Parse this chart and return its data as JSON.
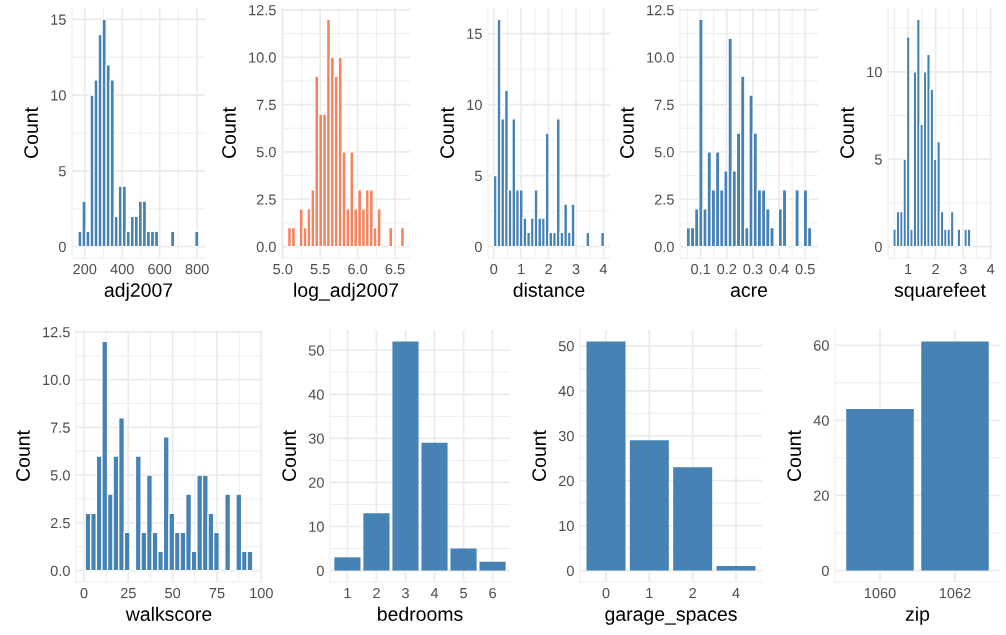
{
  "chart_data": [
    {
      "type": "histogram",
      "xlabel": "adj2007",
      "ylabel": "Count",
      "color": "#4682b4",
      "grid": true,
      "bins": [
        164,
        185.5,
        207,
        228.5,
        250,
        271.5,
        293,
        314.5,
        336,
        357.5,
        379,
        400.5,
        422,
        443.5,
        465,
        486.5,
        508,
        529.5,
        551,
        572.5,
        594,
        615.5,
        637,
        658.5,
        680,
        701.5,
        723,
        744.5,
        766,
        787.5,
        809
      ],
      "values": [
        1,
        3,
        1,
        10,
        11,
        14,
        15,
        12,
        11,
        2,
        4,
        4,
        1,
        2,
        2,
        3,
        3,
        1,
        1,
        1,
        0,
        0,
        0,
        1,
        0,
        0,
        0,
        0,
        0,
        1
      ],
      "xlim": [
        132,
        842
      ],
      "xticks": [
        200,
        400,
        600,
        800
      ],
      "ylim": [
        -0.75,
        15.75
      ],
      "yticks": [
        0,
        5,
        10,
        15
      ]
    },
    {
      "type": "histogram",
      "xlabel": "log_adj2007",
      "ylabel": "Count",
      "color": "#f4845f",
      "grid": true,
      "bins": [
        5.065,
        5.117,
        5.169,
        5.221,
        5.273,
        5.325,
        5.377,
        5.429,
        5.481,
        5.533,
        5.585,
        5.637,
        5.689,
        5.741,
        5.793,
        5.845,
        5.897,
        5.949,
        6.001,
        6.053,
        6.105,
        6.157,
        6.209,
        6.261,
        6.313,
        6.365,
        6.417,
        6.469,
        6.521,
        6.573,
        6.625
      ],
      "values": [
        1,
        1,
        0,
        2,
        1,
        2,
        3,
        9,
        7,
        7,
        12,
        10,
        9,
        10,
        5,
        2,
        5,
        2,
        3,
        2,
        3,
        3,
        1,
        2,
        0,
        0,
        1,
        0,
        0,
        1
      ],
      "xlim": [
        4.99,
        6.7
      ],
      "xticks": [
        {
          "value": 5,
          "label": "5.0"
        },
        {
          "value": 5.5,
          "label": "5.5"
        },
        {
          "value": 6,
          "label": "6.0"
        },
        {
          "value": 6.5,
          "label": "6.5"
        }
      ],
      "ylim": [
        -0.6,
        12.6
      ],
      "yticks": [
        {
          "value": 0,
          "label": "0.0"
        },
        {
          "value": 2.5,
          "label": "2.5"
        },
        {
          "value": 5,
          "label": "5.0"
        },
        {
          "value": 7.5,
          "label": "7.5"
        },
        {
          "value": 10,
          "label": "10.0"
        },
        {
          "value": 12.5,
          "label": "12.5"
        }
      ]
    },
    {
      "type": "histogram",
      "xlabel": "distance",
      "ylabel": "Count",
      "color": "#4682b4",
      "grid": true,
      "bins": [
        -0.01,
        0.125,
        0.26,
        0.395,
        0.53,
        0.665,
        0.8,
        0.935,
        1.07,
        1.205,
        1.34,
        1.475,
        1.61,
        1.745,
        1.88,
        2.015,
        2.15,
        2.285,
        2.42,
        2.555,
        2.69,
        2.825,
        2.96,
        3.095,
        3.23,
        3.365,
        3.5,
        3.635,
        3.77,
        3.905,
        4.04
      ],
      "values": [
        5,
        16,
        9,
        11,
        4,
        9,
        4,
        4,
        2,
        1,
        2,
        4,
        2,
        2,
        8,
        1,
        1,
        9,
        1,
        3,
        1,
        3,
        0,
        0,
        0,
        1,
        0,
        0,
        0,
        1
      ],
      "xlim": [
        -0.21,
        4.24
      ],
      "xticks": [
        0,
        1,
        2,
        3,
        4
      ],
      "ylim": [
        -0.8,
        16.8
      ],
      "yticks": [
        0,
        5,
        10,
        15
      ]
    },
    {
      "type": "histogram",
      "xlabel": "acre",
      "ylabel": "Count",
      "color": "#4682b4",
      "grid": true,
      "bins": [
        0.045,
        0.061,
        0.077,
        0.093,
        0.109,
        0.125,
        0.141,
        0.157,
        0.173,
        0.189,
        0.205,
        0.221,
        0.237,
        0.253,
        0.269,
        0.285,
        0.301,
        0.317,
        0.333,
        0.349,
        0.365,
        0.381,
        0.397,
        0.413,
        0.429,
        0.445,
        0.461,
        0.477,
        0.493,
        0.509,
        0.525
      ],
      "values": [
        1,
        1,
        2,
        12,
        2,
        5,
        3,
        5,
        3,
        4,
        11,
        4,
        6,
        9,
        1,
        8,
        6,
        3,
        3,
        2,
        1,
        0,
        2,
        3,
        0,
        0,
        3,
        0,
        3,
        1
      ],
      "xlim": [
        0.021,
        0.549
      ],
      "xticks": [
        0.1,
        0.2,
        0.3,
        0.4,
        0.5
      ],
      "ylim": [
        -0.6,
        12.6
      ],
      "yticks": [
        {
          "value": 0,
          "label": "0.0"
        },
        {
          "value": 2.5,
          "label": "2.5"
        },
        {
          "value": 5,
          "label": "5.0"
        },
        {
          "value": 7.5,
          "label": "7.5"
        },
        {
          "value": 10,
          "label": "10.0"
        },
        {
          "value": 12.5,
          "label": "12.5"
        }
      ]
    },
    {
      "type": "histogram",
      "xlabel": "squarefeet",
      "ylabel": "Count",
      "color": "#4682b4",
      "grid": true,
      "bins": [
        0.45,
        0.573,
        0.696,
        0.819,
        0.942,
        1.065,
        1.188,
        1.311,
        1.434,
        1.557,
        1.68,
        1.803,
        1.926,
        2.049,
        2.172,
        2.295,
        2.418,
        2.541,
        2.664,
        2.787,
        2.91,
        3.033,
        3.156,
        3.279,
        3.402,
        3.525,
        3.648,
        3.771,
        3.894,
        4.017
      ],
      "values": [
        1,
        2,
        2,
        5,
        12,
        1,
        10,
        13,
        7,
        10,
        11,
        9,
        5,
        6,
        2,
        1,
        1,
        2,
        0,
        1,
        0,
        1,
        1,
        0,
        0,
        0,
        0,
        0,
        0
      ],
      "xlim": [
        0.27,
        4.05
      ],
      "xticks": [
        1,
        2,
        3,
        4
      ],
      "ylim": [
        -0.65,
        13.65
      ],
      "yticks": [
        0,
        5,
        10
      ]
    },
    {
      "type": "histogram",
      "xlabel": "walkscore",
      "ylabel": "Count",
      "color": "#4682b4",
      "grid": true,
      "bins": [
        0.7,
        3.85,
        7,
        10.15,
        13.3,
        16.45,
        19.6,
        22.75,
        25.9,
        29.05,
        32.2,
        35.35,
        38.5,
        41.65,
        44.8,
        47.95,
        51.1,
        54.25,
        57.4,
        60.55,
        63.7,
        66.85,
        70,
        73.15,
        76.3,
        79.45,
        82.6,
        85.75,
        88.9,
        92.05,
        95.2
      ],
      "values": [
        3,
        3,
        6,
        12,
        4,
        6,
        8,
        2,
        0,
        6,
        2,
        5,
        2,
        1,
        7,
        3,
        2,
        2,
        4,
        1,
        5,
        5,
        3,
        2,
        0,
        4,
        0,
        4,
        1,
        1
      ],
      "xlim": [
        -4.5,
        100.4
      ],
      "xticks": [
        0,
        25,
        50,
        75,
        100
      ],
      "ylim": [
        -0.6,
        12.6
      ],
      "yticks": [
        {
          "value": 0,
          "label": "0.0"
        },
        {
          "value": 2.5,
          "label": "2.5"
        },
        {
          "value": 5,
          "label": "5.0"
        },
        {
          "value": 7.5,
          "label": "7.5"
        },
        {
          "value": 10,
          "label": "10.0"
        },
        {
          "value": 12.5,
          "label": "12.5"
        }
      ]
    },
    {
      "type": "bar",
      "xlabel": "bedrooms",
      "ylabel": "Count",
      "color": "#4682b4",
      "grid": true,
      "categories": [
        "1",
        "2",
        "3",
        "4",
        "5",
        "6"
      ],
      "values": [
        3,
        13,
        52,
        29,
        5,
        2
      ],
      "ylim": [
        -2.6,
        54.6
      ],
      "yticks": [
        0,
        10,
        20,
        30,
        40,
        50
      ]
    },
    {
      "type": "bar",
      "xlabel": "garage_spaces",
      "ylabel": "Count",
      "color": "#4682b4",
      "grid": true,
      "categories": [
        "0",
        "1",
        "2",
        "4"
      ],
      "values": [
        51,
        29,
        23,
        1
      ],
      "ylim": [
        -2.55,
        53.55
      ],
      "yticks": [
        0,
        10,
        20,
        30,
        40,
        50
      ]
    },
    {
      "type": "bar",
      "xlabel": "zip",
      "ylabel": "Count",
      "color": "#4682b4",
      "grid": true,
      "categories": [
        "1060",
        "1062"
      ],
      "values": [
        43,
        61
      ],
      "ylim": [
        -3.05,
        64.05
      ],
      "yticks": [
        0,
        20,
        40,
        60
      ]
    }
  ]
}
